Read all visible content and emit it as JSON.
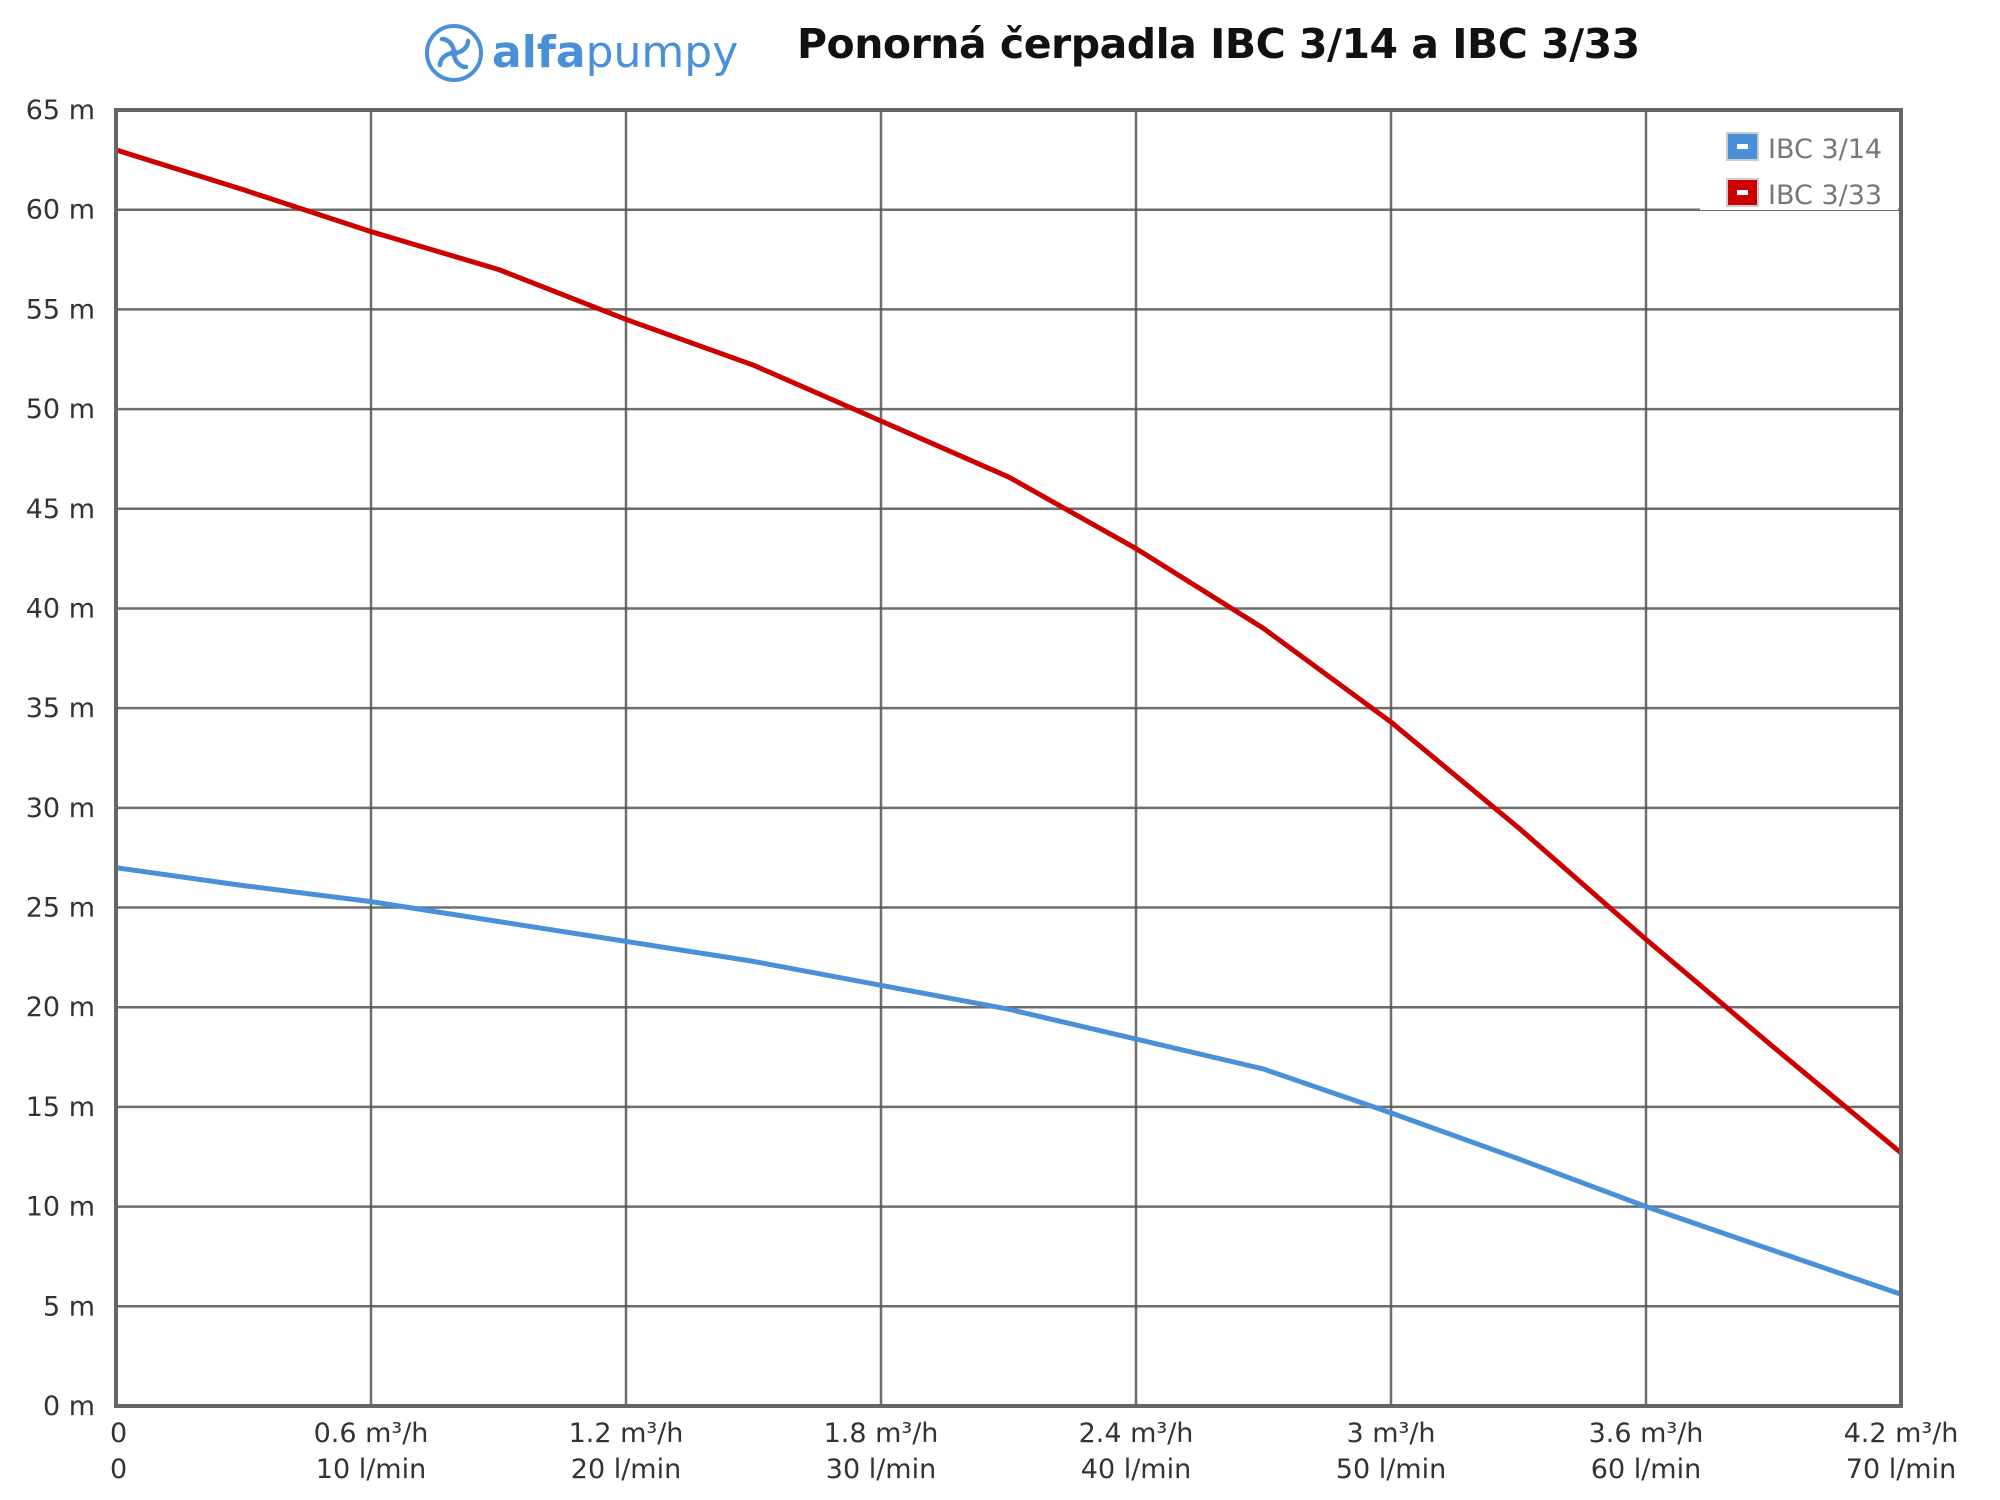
{
  "header": {
    "logo_bold": "alfa",
    "logo_regular": "pumpy",
    "title": "Ponorná čerpadla IBC 3/14 a IBC 3/33"
  },
  "colors": {
    "brand": "#4a90d9",
    "series_blue": "#4a90d9",
    "series_red": "#cc0000",
    "grid": "#555555",
    "frame": "#666666"
  },
  "chart_data": {
    "type": "line",
    "title": "Ponorná čerpadla IBC 3/14 a IBC 3/33",
    "xlabel": "",
    "ylabel": "",
    "x": [
      0,
      0.3,
      0.6,
      0.9,
      1.2,
      1.5,
      1.8,
      2.1,
      2.4,
      2.7,
      3.0,
      3.3,
      3.6,
      3.9,
      4.2
    ],
    "x_unit": "m³/h",
    "xlim": [
      0,
      4.2
    ],
    "ylim": [
      0,
      65
    ],
    "x_ticks": [
      {
        "value": 0,
        "label": "0",
        "label2": "0"
      },
      {
        "value": 0.6,
        "label": "0.6 m³/h",
        "label2": "10 l/min"
      },
      {
        "value": 1.2,
        "label": "1.2 m³/h",
        "label2": "20 l/min"
      },
      {
        "value": 1.8,
        "label": "1.8 m³/h",
        "label2": "30 l/min"
      },
      {
        "value": 2.4,
        "label": "2.4 m³/h",
        "label2": "40 l/min"
      },
      {
        "value": 3.0,
        "label": "3 m³/h",
        "label2": "50 l/min"
      },
      {
        "value": 3.6,
        "label": "3.6 m³/h",
        "label2": "60 l/min"
      },
      {
        "value": 4.2,
        "label": "4.2 m³/h",
        "label2": "70 l/min"
      }
    ],
    "y_ticks": [
      {
        "value": 0,
        "label": "0 m"
      },
      {
        "value": 5,
        "label": "5 m"
      },
      {
        "value": 10,
        "label": "10 m"
      },
      {
        "value": 15,
        "label": "15 m"
      },
      {
        "value": 20,
        "label": "20 m"
      },
      {
        "value": 25,
        "label": "25 m"
      },
      {
        "value": 30,
        "label": "30 m"
      },
      {
        "value": 35,
        "label": "35 m"
      },
      {
        "value": 40,
        "label": "40 m"
      },
      {
        "value": 45,
        "label": "45 m"
      },
      {
        "value": 50,
        "label": "50 m"
      },
      {
        "value": 55,
        "label": "55 m"
      },
      {
        "value": 60,
        "label": "60 m"
      },
      {
        "value": 65,
        "label": "65 m"
      }
    ],
    "grid": true,
    "legend_position": "top-right",
    "series": [
      {
        "name": "IBC 3/14",
        "color": "#4a90d9",
        "values": [
          27.0,
          26.1,
          25.3,
          24.3,
          23.3,
          22.3,
          21.1,
          19.9,
          18.4,
          16.9,
          14.7,
          12.4,
          10.0,
          7.8,
          5.6
        ]
      },
      {
        "name": "IBC 3/33",
        "color": "#cc0000",
        "values": [
          63.0,
          61.0,
          58.9,
          57.0,
          54.5,
          52.2,
          49.4,
          46.6,
          43.0,
          39.0,
          34.3,
          29.0,
          23.4,
          18.0,
          12.7
        ]
      }
    ]
  }
}
